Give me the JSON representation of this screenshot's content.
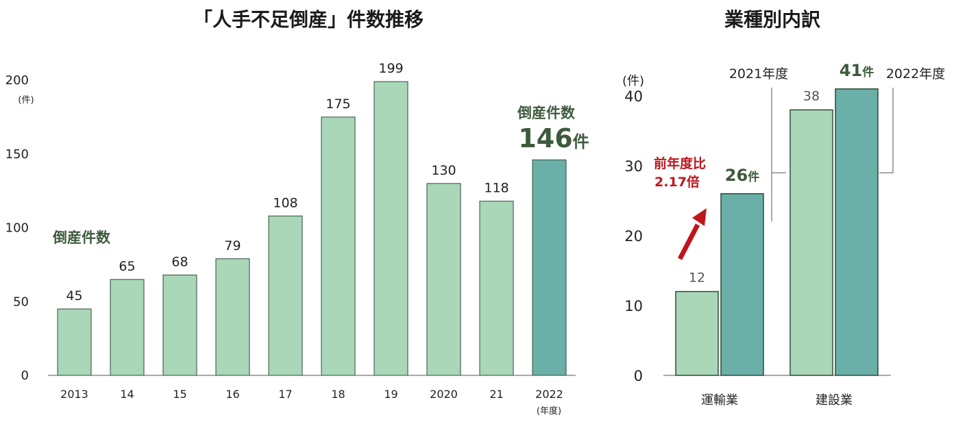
{
  "chart_data": [
    {
      "type": "bar",
      "title": "「人手不足倒産」件数推移",
      "unit": "(件)",
      "x_unit": "(年度)",
      "categories": [
        "2013",
        "14",
        "15",
        "16",
        "17",
        "18",
        "19",
        "2020",
        "21",
        "2022"
      ],
      "values": [
        45,
        65,
        68,
        79,
        108,
        175,
        199,
        130,
        118,
        146
      ],
      "value_labels": [
        "45",
        "65",
        "68",
        "79",
        "108",
        "175",
        "199",
        "130",
        "118",
        ""
      ],
      "ylim": [
        0,
        200
      ],
      "yticks": [
        "0",
        "50",
        "100",
        "150",
        "200"
      ],
      "grid": false,
      "colors": {
        "bar": "#a9d7b8",
        "highlight": "#6aafa8",
        "edge": "#2e4a38"
      },
      "annotations": {
        "series_label": "倒産件数",
        "highlight_label": "倒産件数",
        "highlight_value": "146",
        "highlight_unit": "件"
      }
    },
    {
      "type": "bar",
      "title": "業種別内訳",
      "unit": "(件)",
      "categories": [
        "運輸業",
        "建設業"
      ],
      "series": [
        {
          "name": "2021年度",
          "values": [
            12,
            38
          ],
          "value_labels": [
            "12",
            "38"
          ],
          "color": "#a9d7b8"
        },
        {
          "name": "2022年度",
          "values": [
            26,
            41
          ],
          "value_labels": [
            "26",
            "41"
          ],
          "unit_labels": [
            "件",
            "件"
          ],
          "color": "#6aafa8"
        }
      ],
      "ylim": [
        0,
        40
      ],
      "yticks": [
        "0",
        "10",
        "20",
        "30",
        "40"
      ],
      "grid": false,
      "annotations": {
        "ratio_line1": "前年度比",
        "ratio_line2": "2.17倍",
        "ratio_color": "#c0151b"
      }
    }
  ]
}
